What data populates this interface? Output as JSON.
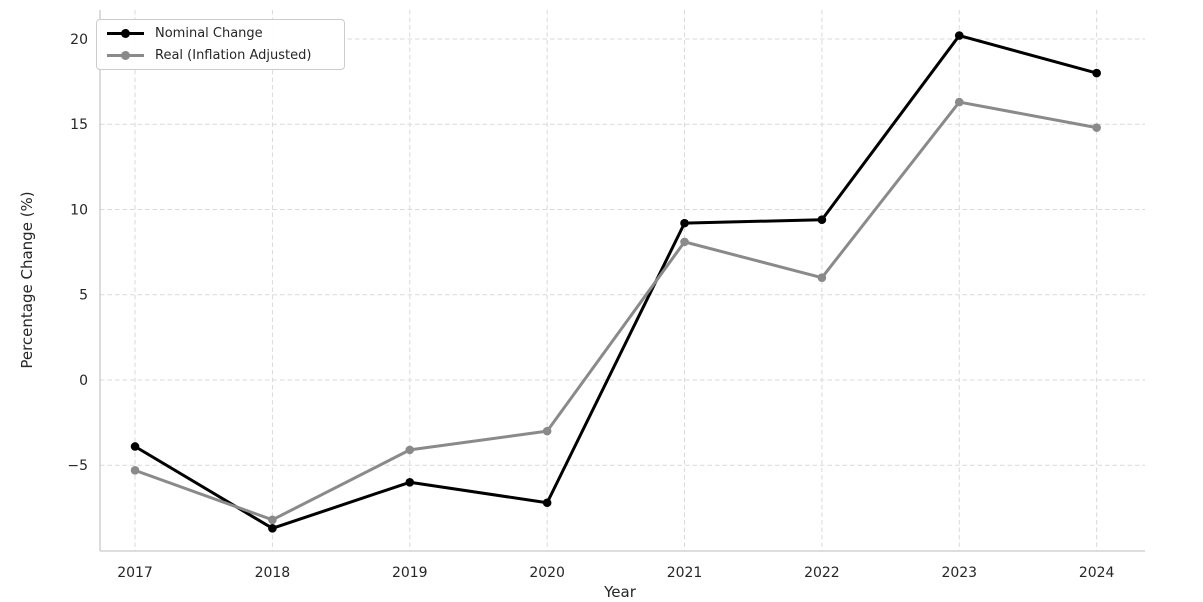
{
  "chart_data": {
    "type": "line",
    "title": "",
    "xlabel": "Year",
    "ylabel": "Percentage Change (%)",
    "categories": [
      2017,
      2018,
      2019,
      2020,
      2021,
      2022,
      2023,
      2024
    ],
    "series": [
      {
        "name": "Nominal Change",
        "color": "#000000",
        "values": [
          -3.9,
          -8.7,
          -6.0,
          -7.2,
          9.2,
          9.4,
          20.2,
          18.0
        ]
      },
      {
        "name": "Real (Inflation Adjusted)",
        "color": "#8a8a8a",
        "values": [
          -5.3,
          -8.2,
          -4.1,
          -3.0,
          8.1,
          6.0,
          16.3,
          14.8
        ]
      }
    ],
    "xtick_labels": [
      "2017",
      "2018",
      "2019",
      "2020",
      "2021",
      "2022",
      "2023",
      "2024"
    ],
    "yticks": [
      -5,
      0,
      5,
      10,
      15,
      20
    ],
    "ytick_labels": [
      "−5",
      "0",
      "5",
      "10",
      "15",
      "20"
    ],
    "xlim": [
      2016.745,
      2024.352
    ],
    "ylim": [
      -10.03,
      21.7
    ],
    "grid": true,
    "grid_style": "dashed",
    "legend_position": "upper-left",
    "marker": "circle",
    "marker_radius": 4.3,
    "line_width": 3,
    "colors": {
      "grid": "#d9d9d9",
      "spine": "#c9c9c9",
      "tick_text": "#262626",
      "label_text": "#262626",
      "background": "#ffffff"
    }
  }
}
